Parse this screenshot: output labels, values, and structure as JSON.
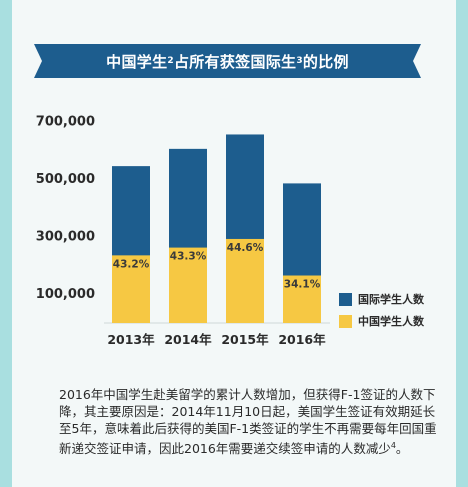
{
  "colors": {
    "international": "#1d5d8e",
    "chinese": "#f6c843",
    "banner": "#1d5d8e",
    "background": "#a9dfe0"
  },
  "title": {
    "part1": "中国学生",
    "sup1": "2",
    "part2": "占所有获签国际生",
    "sup2": "3",
    "part3": "的比例"
  },
  "chart_data": {
    "type": "bar",
    "stacked": false,
    "categories": [
      "2013年",
      "2014年",
      "2015年",
      "2016年"
    ],
    "series": [
      {
        "name": "国际学生人数",
        "values": [
          545000,
          605000,
          655000,
          485000
        ]
      },
      {
        "name": "中国学生人数",
        "values": [
          235000,
          262000,
          292000,
          165000
        ]
      }
    ],
    "percent_labels": [
      "43.2%",
      "43.3%",
      "44.6%",
      "34.1%"
    ],
    "yticks": [
      "700,000",
      "500,000",
      "300,000",
      "100,000"
    ],
    "ytick_values": [
      700000,
      500000,
      300000,
      100000
    ],
    "ylim": [
      0,
      740000
    ],
    "grid": false,
    "legend_position": "right"
  },
  "footnote": {
    "text": "2016年中国学生赴美留学的累计人数增加，但获得F-1签证的人数下降，其主要原因是：2014年11月10日起，美国学生签证有效期延长至5年，意味着此后获得的美国F-1类签证的学生不再需要每年回国重新递交签证申请，因此2016年需要递交续签申请的人数减少",
    "sup": "4",
    "end": "。"
  }
}
